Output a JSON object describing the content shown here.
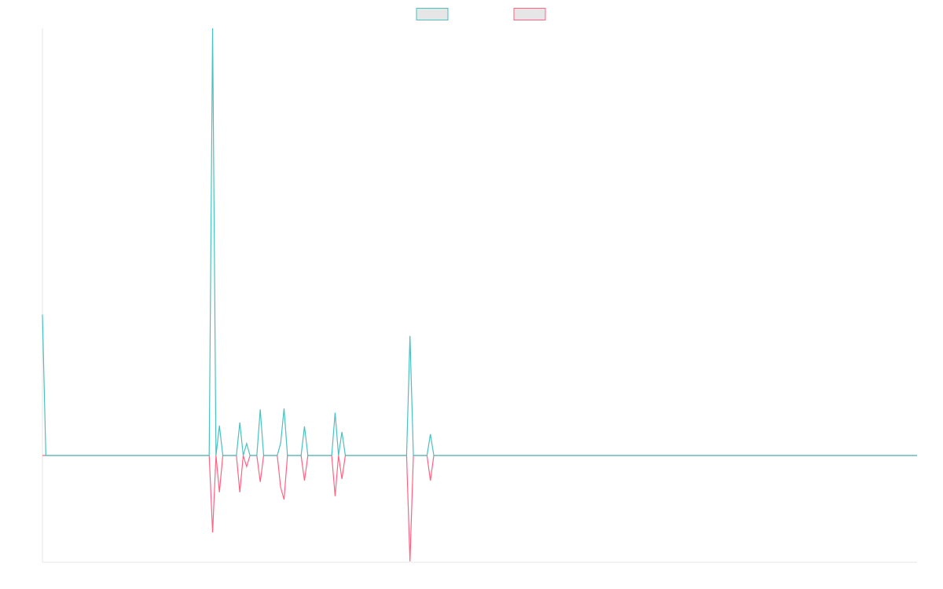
{
  "chart_data": {
    "type": "line",
    "legend": "top",
    "grid": false,
    "ylim": [
      -25,
      100
    ],
    "series": [
      {
        "color": "#4bc0c0",
        "values": [
          33,
          0,
          0,
          0,
          0,
          0,
          0,
          0,
          0,
          0,
          0,
          0,
          0,
          0,
          0,
          0,
          0,
          0,
          0,
          0,
          0,
          0,
          0,
          0,
          0,
          0,
          0,
          0,
          0,
          0,
          0,
          0,
          0,
          0,
          0,
          0,
          0,
          0,
          0,
          0,
          0,
          0,
          0,
          0,
          0,
          0,
          0,
          0,
          0,
          0,
          100,
          0,
          7,
          0,
          0,
          0,
          0,
          0,
          7.7,
          0,
          2.8,
          0,
          0,
          0,
          10.8,
          0,
          0,
          0,
          0,
          0,
          2.9,
          11,
          0,
          0,
          0,
          0,
          0,
          6.8,
          0,
          0,
          0,
          0,
          0,
          0,
          0,
          0,
          10,
          0,
          5.5,
          0,
          0,
          0,
          0,
          0,
          0,
          0,
          0,
          0,
          0,
          0,
          0,
          0,
          0,
          0,
          0,
          0,
          0,
          0,
          28,
          0,
          0,
          0,
          0,
          0,
          5,
          0,
          0,
          0,
          0,
          0,
          0,
          0,
          0,
          0,
          0,
          0,
          0,
          0,
          0,
          0,
          0,
          0,
          0,
          0,
          0,
          0,
          0,
          0,
          0,
          0,
          0,
          0,
          0,
          0,
          0,
          0,
          0,
          0,
          0,
          0,
          0,
          0,
          0,
          0,
          0,
          0,
          0,
          0,
          0,
          0,
          0,
          0,
          0,
          0,
          0,
          0,
          0,
          0,
          0,
          0,
          0,
          0,
          0,
          0,
          0,
          0,
          0,
          0,
          0,
          0,
          0,
          0,
          0,
          0,
          0,
          0,
          0,
          0,
          0,
          0,
          0,
          0,
          0,
          0,
          0,
          0,
          0,
          0,
          0,
          0,
          0,
          0,
          0,
          0,
          0,
          0,
          0,
          0,
          0,
          0,
          0,
          0,
          0,
          0,
          0,
          0,
          0,
          0,
          0,
          0,
          0,
          0,
          0,
          0,
          0,
          0,
          0,
          0,
          0,
          0,
          0,
          0,
          0,
          0,
          0,
          0,
          0,
          0,
          0,
          0,
          0,
          0,
          0,
          0,
          0,
          0,
          0,
          0,
          0,
          0,
          0,
          0,
          0,
          0,
          0,
          0,
          0,
          0
        ]
      },
      {
        "color": "#ff6384",
        "values": [
          0,
          0,
          0,
          0,
          0,
          0,
          0,
          0,
          0,
          0,
          0,
          0,
          0,
          0,
          0,
          0,
          0,
          0,
          0,
          0,
          0,
          0,
          0,
          0,
          0,
          0,
          0,
          0,
          0,
          0,
          0,
          0,
          0,
          0,
          0,
          0,
          0,
          0,
          0,
          0,
          0,
          0,
          0,
          0,
          0,
          0,
          0,
          0,
          0,
          0,
          -18,
          0,
          -8.6,
          0,
          0,
          0,
          0,
          0,
          -8.6,
          0,
          -2.6,
          0,
          0,
          0,
          -6.2,
          0,
          0,
          0,
          0,
          0,
          -7.5,
          -10.3,
          0,
          0,
          0,
          0,
          0,
          -5.9,
          0,
          0,
          0,
          0,
          0,
          0,
          0,
          0,
          -9.5,
          0,
          -5.5,
          0,
          0,
          0,
          0,
          0,
          0,
          0,
          0,
          0,
          0,
          0,
          0,
          0,
          0,
          0,
          0,
          0,
          0,
          0,
          -24.8,
          0,
          0,
          0,
          0,
          0,
          -5.9,
          0,
          0,
          0,
          0,
          0,
          0,
          0,
          0,
          0,
          0,
          0,
          0,
          0,
          0,
          0,
          0,
          0,
          0,
          0,
          0,
          0,
          0,
          0,
          0,
          0,
          0,
          0,
          0,
          0,
          0,
          0,
          0,
          0,
          0,
          0,
          0,
          0,
          0,
          0,
          0,
          0,
          0,
          0,
          0,
          0,
          0,
          0,
          0,
          0,
          0,
          0,
          0,
          0,
          0,
          0,
          0,
          0,
          0,
          0,
          0,
          0,
          0,
          0,
          0,
          0,
          0,
          0,
          0,
          0,
          0,
          0,
          0,
          0,
          0,
          0,
          0,
          0,
          0,
          0,
          0,
          0,
          0,
          0,
          0,
          0,
          0,
          0,
          0,
          0,
          0,
          0,
          0,
          0,
          0,
          0,
          0,
          0,
          0,
          0,
          0,
          0,
          0,
          0,
          0,
          0,
          0,
          0,
          0,
          0,
          0,
          0,
          0,
          0,
          0,
          0,
          0,
          0,
          0,
          0,
          0,
          0,
          0,
          0,
          0,
          0,
          0,
          0,
          0,
          0,
          0,
          0,
          0,
          0,
          0,
          0,
          0,
          0,
          0,
          0,
          0,
          0,
          0,
          0
        ]
      }
    ]
  }
}
